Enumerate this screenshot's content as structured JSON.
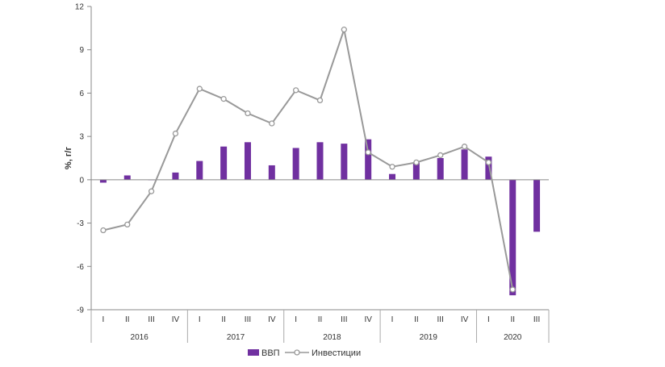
{
  "chart_data": {
    "type": "bar+line",
    "title": "",
    "ylabel": "%, г/г",
    "ylim": [
      -9,
      12
    ],
    "yticks": [
      -9,
      -6,
      -3,
      0,
      3,
      6,
      9,
      12
    ],
    "years": [
      {
        "label": "2016",
        "quarters": [
          "I",
          "II",
          "III",
          "IV"
        ]
      },
      {
        "label": "2017",
        "quarters": [
          "I",
          "II",
          "III",
          "IV"
        ]
      },
      {
        "label": "2018",
        "quarters": [
          "I",
          "II",
          "III",
          "IV"
        ]
      },
      {
        "label": "2019",
        "quarters": [
          "I",
          "II",
          "III",
          "IV"
        ]
      },
      {
        "label": "2020",
        "quarters": [
          "I",
          "II",
          "III"
        ]
      }
    ],
    "series": [
      {
        "name": "ВВП",
        "type": "bar",
        "color": "#7030A0",
        "values": [
          -0.2,
          0.3,
          0.0,
          0.5,
          1.3,
          2.3,
          2.6,
          1.0,
          2.2,
          2.6,
          2.5,
          2.8,
          0.4,
          1.2,
          1.5,
          2.1,
          1.6,
          -8.0,
          -3.6
        ]
      },
      {
        "name": "Инвестиции",
        "type": "line",
        "color": "#999999",
        "values": [
          -3.5,
          -3.1,
          -0.8,
          3.2,
          6.3,
          5.6,
          4.6,
          3.9,
          6.2,
          5.5,
          10.4,
          1.9,
          0.9,
          1.2,
          1.7,
          2.3,
          1.2,
          -7.6,
          null
        ]
      }
    ]
  }
}
